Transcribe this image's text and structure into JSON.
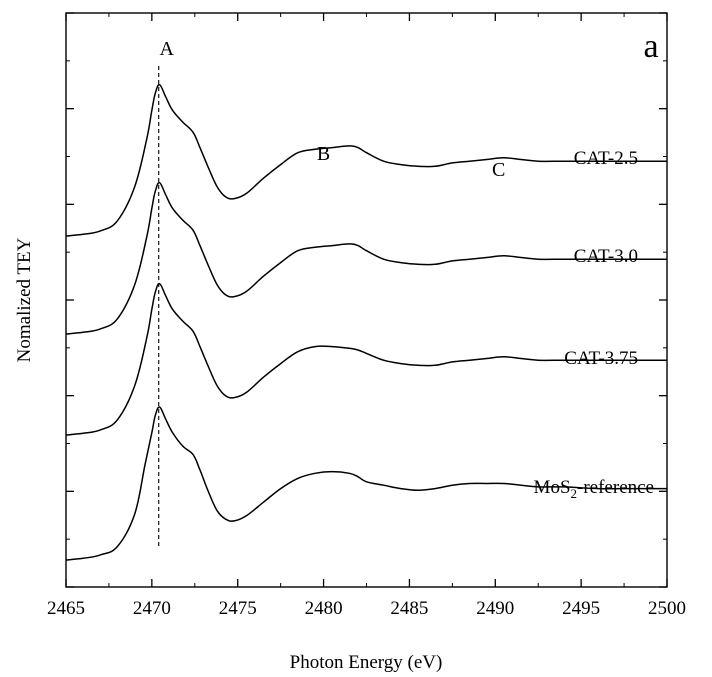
{
  "chart_data": {
    "type": "line",
    "panel_label": "a",
    "xlabel": "Photon Energy (eV)",
    "ylabel": "Nomalized TEY",
    "xlim": [
      2465,
      2500
    ],
    "xticks": [
      "2465",
      "2470",
      "2475",
      "2480",
      "2485",
      "2490",
      "2495",
      "2500"
    ],
    "y_tick_labels": false,
    "reference_line_x": 2470.4,
    "peak_annotations": [
      {
        "label": "A",
        "x": 2470.4
      },
      {
        "label": "B",
        "x": 2480.0
      },
      {
        "label": "C",
        "x": 2490.2
      }
    ],
    "series": [
      {
        "name": "CAT-2.5",
        "x": [
          2465,
          2466,
          2467,
          2468,
          2469,
          2469.7,
          2470.0,
          2470.2,
          2470.45,
          2470.8,
          2471.2,
          2471.8,
          2472.4,
          2472.8,
          2473.3,
          2473.8,
          2474.3,
          2474.8,
          2475.5,
          2476.5,
          2477.5,
          2478.5,
          2479.5,
          2480.5,
          2481.5,
          2482.0,
          2482.5,
          2483.5,
          2484.5,
          2485.5,
          2486.5,
          2487.5,
          2488.5,
          2489.5,
          2490.5,
          2491.5,
          2492.5,
          2494,
          2496,
          2498,
          2500
        ],
        "y": [
          0.18,
          0.19,
          0.21,
          0.27,
          0.47,
          0.75,
          0.92,
          1.02,
          1.07,
          1.0,
          0.92,
          0.85,
          0.79,
          0.7,
          0.58,
          0.47,
          0.41,
          0.4,
          0.43,
          0.52,
          0.6,
          0.67,
          0.69,
          0.7,
          0.71,
          0.7,
          0.67,
          0.62,
          0.6,
          0.59,
          0.59,
          0.61,
          0.62,
          0.63,
          0.64,
          0.63,
          0.62,
          0.62,
          0.62,
          0.62,
          0.62
        ]
      },
      {
        "name": "CAT-3.0",
        "x": [
          2465,
          2466,
          2467,
          2468,
          2469,
          2469.7,
          2470.0,
          2470.2,
          2470.45,
          2470.8,
          2471.2,
          2471.8,
          2472.4,
          2472.8,
          2473.3,
          2473.8,
          2474.3,
          2474.8,
          2475.5,
          2476.5,
          2477.5,
          2478.5,
          2479.5,
          2480.5,
          2481.5,
          2482.0,
          2482.5,
          2483.5,
          2484.5,
          2485.5,
          2486.5,
          2487.5,
          2488.5,
          2489.5,
          2490.5,
          2491.5,
          2492.5,
          2494,
          2496,
          2498,
          2500
        ],
        "y": [
          0.18,
          0.19,
          0.21,
          0.27,
          0.47,
          0.75,
          0.92,
          1.02,
          1.07,
          1.0,
          0.92,
          0.85,
          0.79,
          0.7,
          0.58,
          0.47,
          0.41,
          0.4,
          0.43,
          0.52,
          0.6,
          0.67,
          0.69,
          0.7,
          0.71,
          0.7,
          0.67,
          0.62,
          0.6,
          0.59,
          0.59,
          0.61,
          0.62,
          0.63,
          0.64,
          0.63,
          0.62,
          0.62,
          0.62,
          0.62,
          0.62
        ]
      },
      {
        "name": "CAT-3.75",
        "x": [
          2465,
          2466,
          2467,
          2468,
          2469,
          2469.7,
          2470.0,
          2470.2,
          2470.45,
          2470.8,
          2471.2,
          2471.8,
          2472.4,
          2472.8,
          2473.3,
          2473.8,
          2474.3,
          2474.8,
          2475.5,
          2476.5,
          2477.5,
          2478.5,
          2479.5,
          2480.5,
          2481.5,
          2482.0,
          2482.5,
          2483.5,
          2484.5,
          2485.5,
          2486.5,
          2487.5,
          2488.5,
          2489.5,
          2490.5,
          2491.5,
          2492.5,
          2494,
          2496,
          2498,
          2500
        ],
        "y": [
          0.18,
          0.19,
          0.21,
          0.27,
          0.47,
          0.75,
          0.92,
          1.02,
          1.07,
          1.0,
          0.92,
          0.85,
          0.79,
          0.7,
          0.58,
          0.47,
          0.41,
          0.4,
          0.43,
          0.52,
          0.6,
          0.67,
          0.7,
          0.7,
          0.69,
          0.68,
          0.66,
          0.62,
          0.6,
          0.59,
          0.59,
          0.61,
          0.62,
          0.63,
          0.64,
          0.63,
          0.62,
          0.62,
          0.62,
          0.62,
          0.62
        ]
      },
      {
        "name": "MoS2-reference",
        "x": [
          2465,
          2466,
          2467,
          2468,
          2469,
          2469.6,
          2470.0,
          2470.2,
          2470.45,
          2470.8,
          2471.2,
          2471.8,
          2472.4,
          2472.8,
          2473.3,
          2473.8,
          2474.3,
          2474.8,
          2475.5,
          2476.5,
          2477.5,
          2478.5,
          2479.5,
          2480.5,
          2481.5,
          2482.0,
          2482.5,
          2483.5,
          2484.5,
          2485.5,
          2486.5,
          2487.5,
          2488.5,
          2489.5,
          2490.5,
          2491.5,
          2492.5,
          2494,
          2496,
          2498,
          2500
        ],
        "y": [
          0.18,
          0.19,
          0.21,
          0.26,
          0.45,
          0.74,
          0.93,
          1.03,
          1.08,
          1.01,
          0.93,
          0.85,
          0.8,
          0.71,
          0.58,
          0.47,
          0.42,
          0.41,
          0.44,
          0.52,
          0.6,
          0.66,
          0.69,
          0.7,
          0.69,
          0.67,
          0.64,
          0.62,
          0.6,
          0.59,
          0.6,
          0.62,
          0.63,
          0.63,
          0.63,
          0.62,
          0.61,
          0.61,
          0.6,
          0.6,
          0.6
        ]
      }
    ]
  }
}
